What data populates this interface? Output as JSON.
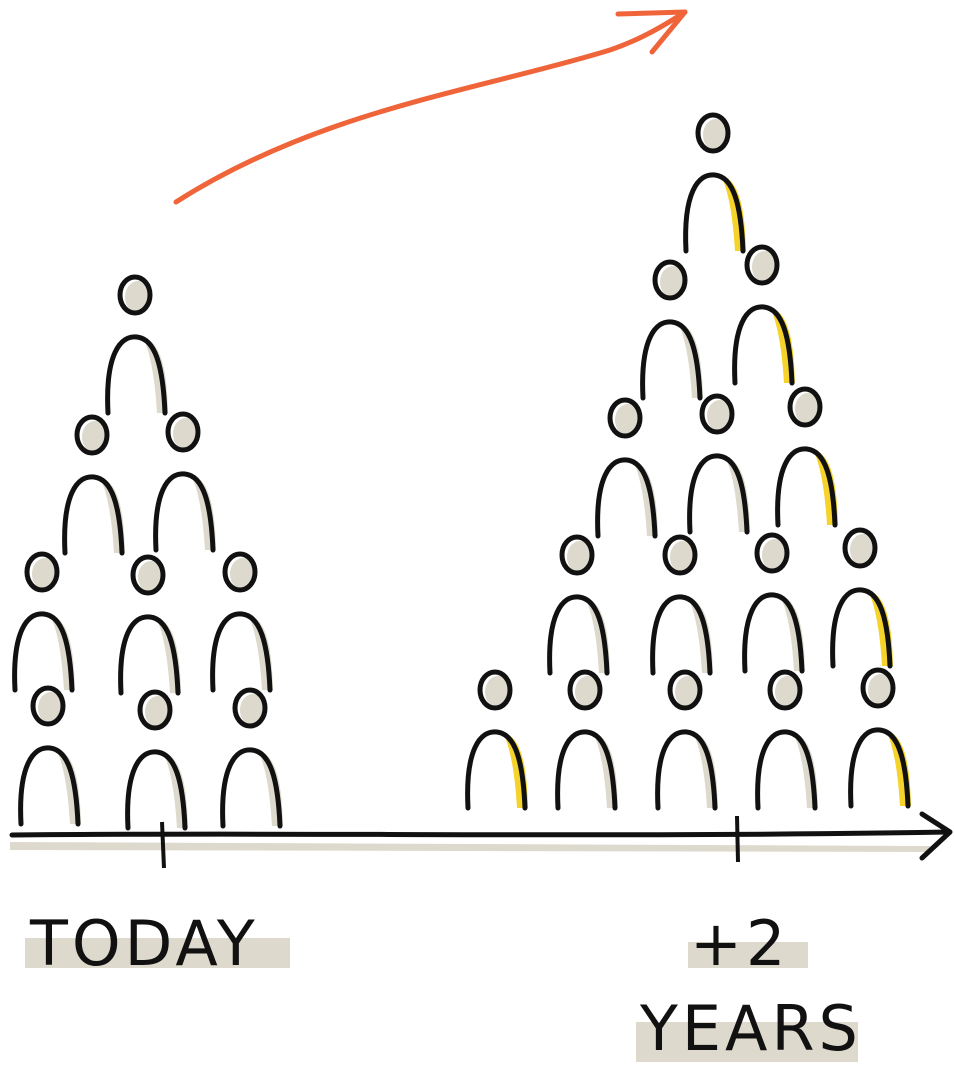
{
  "labels": {
    "today": "TODAY",
    "plus": "+2",
    "years": "YEARS"
  }
}
